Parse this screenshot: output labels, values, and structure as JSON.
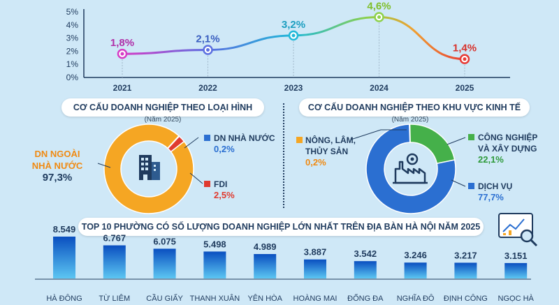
{
  "colors": {
    "background": "#cfe8f7",
    "orange": "#f5a623",
    "blue": "#2b6fd1",
    "red": "#e03a2f",
    "green": "#45b04a",
    "dark_text": "#1f3b5e"
  },
  "growth_years": [
    "2021",
    "2022",
    "2023",
    "2024",
    "2025"
  ],
  "growth_labels": [
    "1,8%",
    "2,1%",
    "3,2%",
    "4,6%",
    "1,4%"
  ],
  "growth_yticks": [
    "0%",
    "1%",
    "2%",
    "3%",
    "4%",
    "5%"
  ],
  "donut1": {
    "title": "CƠ CẤU DOANH NGHIỆP THEO LOẠI HÌNH",
    "subtitle": "(Năm 2025)",
    "icon": "building-icon",
    "label_dn_ngoai_line1": "DN NGOÀI",
    "label_dn_ngoai_line2": "NHÀ NƯỚC",
    "value_dn_ngoai": "97,3%",
    "label_dn_nha_nuoc": "DN NHÀ NƯỚC",
    "value_dn_nha_nuoc": "0,2%",
    "label_fdi": "FDI",
    "value_fdi": "2,5%"
  },
  "donut2": {
    "title": "CƠ CẤU DOANH NGHIỆP THEO KHU VỰC KINH TẾ",
    "subtitle": "(Năm 2025)",
    "icon": "factory-icon",
    "label_nong_line1": "NÔNG, LÂM,",
    "label_nong_line2": "THỦY SẢN",
    "value_nong": "0,2%",
    "label_cn_line1": "CÔNG NGHIỆP",
    "label_cn_line2": "VÀ XÂY DỰNG",
    "value_cn": "22,1%",
    "label_dv": "DỊCH VỤ",
    "value_dv": "77,7%"
  },
  "bars_title": "TOP 10 PHƯỜNG CÓ SỐ LƯỢNG DOANH NGHIỆP LỚN NHẤT TRÊN ĐỊA BÀN HÀ NỘI NĂM 2025",
  "bars_icon": "analytics-icon",
  "chart_data": [
    {
      "type": "line",
      "x": [
        "2021",
        "2022",
        "2023",
        "2024",
        "2025"
      ],
      "values": [
        1.8,
        2.1,
        3.2,
        4.6,
        1.4
      ],
      "data_labels": [
        "1,8%",
        "2,1%",
        "3,2%",
        "4,6%",
        "1,4%"
      ],
      "ylim": [
        0,
        5
      ],
      "yticks": [
        "0%",
        "1%",
        "2%",
        "3%",
        "4%",
        "5%"
      ],
      "grid": false
    },
    {
      "type": "pie",
      "title": "CƠ CẤU DOANH NGHIỆP THEO LOẠI HÌNH",
      "subtitle": "(Năm 2025)",
      "categories": [
        "DN NGOÀI NHÀ NƯỚC",
        "DN NHÀ NƯỚC",
        "FDI"
      ],
      "values": [
        97.3,
        0.2,
        2.5
      ],
      "colors": [
        "#f5a623",
        "#2b6fd1",
        "#e03a2f"
      ]
    },
    {
      "type": "pie",
      "title": "CƠ CẤU DOANH NGHIỆP THEO KHU VỰC KINH TẾ",
      "subtitle": "(Năm 2025)",
      "categories": [
        "NÔNG, LÂM, THỦY SẢN",
        "CÔNG NGHIỆP VÀ XÂY DỰNG",
        "DỊCH VỤ"
      ],
      "values": [
        0.2,
        22.1,
        77.7
      ],
      "colors": [
        "#f5a623",
        "#45b04a",
        "#2b6fd1"
      ]
    },
    {
      "type": "bar",
      "title": "TOP 10 PHƯỜNG CÓ SỐ LƯỢNG DOANH NGHIỆP LỚN NHẤT TRÊN ĐỊA BÀN HÀ NỘI NĂM 2025",
      "categories": [
        "HÀ ĐÔNG",
        "TỪ LIÊM",
        "CẦU GIẤY",
        "THANH XUÂN",
        "YÊN HÒA",
        "HOÀNG MAI",
        "ĐỐNG ĐA",
        "NGHĨA ĐÔ",
        "ĐỊNH CÔNG",
        "NGỌC HÀ"
      ],
      "values": [
        8549,
        6767,
        6075,
        5498,
        4989,
        3887,
        3542,
        3246,
        3217,
        3151
      ],
      "data_labels": [
        "8.549",
        "6.767",
        "6.075",
        "5.498",
        "4.989",
        "3.887",
        "3.542",
        "3.246",
        "3.217",
        "3.151"
      ]
    }
  ]
}
